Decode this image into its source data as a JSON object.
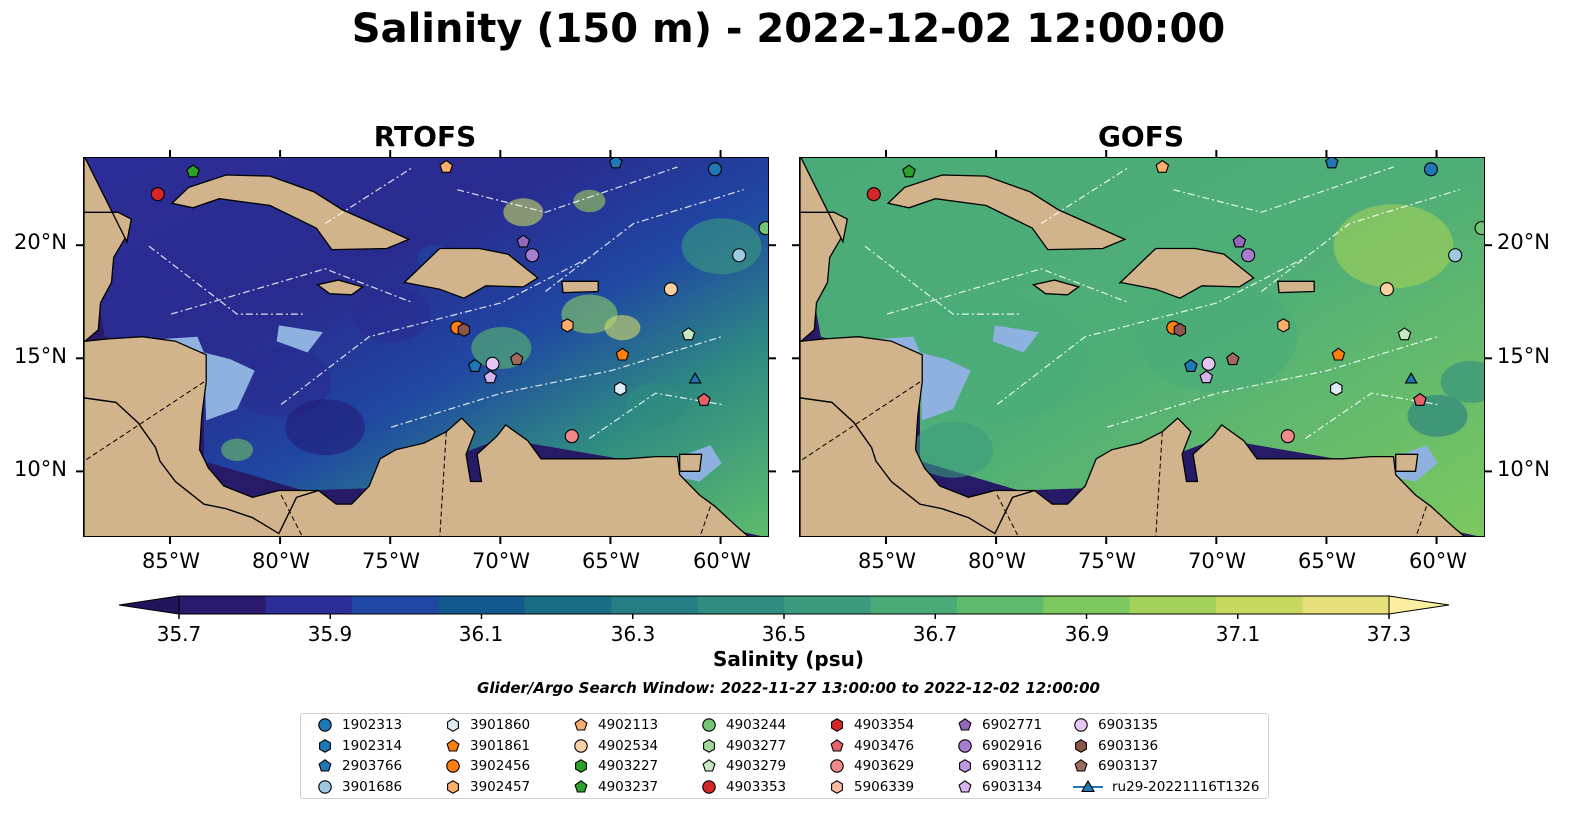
{
  "title": "Salinity (150 m) - 2022-12-02 12:00:00",
  "panels": [
    {
      "title": "RTOFS",
      "style": "rtofs"
    },
    {
      "title": "GOFS",
      "style": "gofs"
    }
  ],
  "axes": {
    "lon_ticks": [
      "85°W",
      "80°W",
      "75°W",
      "70°W",
      "65°W",
      "60°W"
    ],
    "lat_ticks": [
      "20°N",
      "15°N",
      "10°N"
    ]
  },
  "colorbar": {
    "ticks": [
      "35.7",
      "35.9",
      "36.1",
      "36.3",
      "36.5",
      "36.7",
      "36.9",
      "37.1",
      "37.3"
    ],
    "label": "Salinity (psu)",
    "colors": [
      "#2a186c",
      "#2c2d97",
      "#1f47a3",
      "#125a8e",
      "#186d84",
      "#237d82",
      "#2f8c81",
      "#3a9b7f",
      "#4aab79",
      "#5ebb6d",
      "#7cc85f",
      "#a3d159",
      "#c8d861",
      "#e6e07a"
    ],
    "extend_low": "#23135a",
    "extend_high": "#fbee9f"
  },
  "search_window": "Glider/Argo Search Window: 2022-11-27 13:00:00 to 2022-12-02 12:00:00",
  "map_colors": {
    "land": "#d2b48c",
    "shelf": "#8fb1e0",
    "pacific": "#271a66"
  },
  "legend": [
    {
      "label": "1902313",
      "shape": "circle",
      "color": "#1f77b4"
    },
    {
      "label": "1902314",
      "shape": "hexagon",
      "color": "#1f77b4"
    },
    {
      "label": "2903766",
      "shape": "pentagon",
      "color": "#1f77b4"
    },
    {
      "label": "3901686",
      "shape": "circle",
      "color": "#9ecae1"
    },
    {
      "label": "3901860",
      "shape": "hexagon",
      "color": "#deebf7"
    },
    {
      "label": "3901861",
      "shape": "pentagon",
      "color": "#ff7f0e"
    },
    {
      "label": "3902456",
      "shape": "circle",
      "color": "#ff7f0e"
    },
    {
      "label": "3902457",
      "shape": "hexagon",
      "color": "#fdae6b"
    },
    {
      "label": "4902113",
      "shape": "pentagon",
      "color": "#fdae6b"
    },
    {
      "label": "4902534",
      "shape": "circle",
      "color": "#fdd0a2"
    },
    {
      "label": "4903227",
      "shape": "hexagon",
      "color": "#2ca02c"
    },
    {
      "label": "4903237",
      "shape": "pentagon",
      "color": "#2ca02c"
    },
    {
      "label": "4903244",
      "shape": "circle",
      "color": "#74c476"
    },
    {
      "label": "4903277",
      "shape": "hexagon",
      "color": "#a1d99b"
    },
    {
      "label": "4903279",
      "shape": "pentagon",
      "color": "#c7e9c0"
    },
    {
      "label": "4903353",
      "shape": "circle",
      "color": "#d62728"
    },
    {
      "label": "4903354",
      "shape": "hexagon",
      "color": "#d62728"
    },
    {
      "label": "4903476",
      "shape": "pentagon",
      "color": "#e7616a"
    },
    {
      "label": "4903629",
      "shape": "circle",
      "color": "#f08a8a"
    },
    {
      "label": "5906339",
      "shape": "hexagon",
      "color": "#fcbba1"
    },
    {
      "label": "6902771",
      "shape": "pentagon",
      "color": "#9467bd"
    },
    {
      "label": "6902916",
      "shape": "circle",
      "color": "#a77dd0"
    },
    {
      "label": "6903112",
      "shape": "hexagon",
      "color": "#bc9ae0"
    },
    {
      "label": "6903134",
      "shape": "pentagon",
      "color": "#d4b3f0"
    },
    {
      "label": "6903135",
      "shape": "circle",
      "color": "#e5c6f5"
    },
    {
      "label": "6903136",
      "shape": "hexagon",
      "color": "#8c564b"
    },
    {
      "label": "6903137",
      "shape": "pentagon",
      "color": "#a0695e"
    },
    {
      "label": "ru29-20221116T1326",
      "shape": "triangle-line",
      "color": "#1f77b4"
    }
  ],
  "markers": [
    {
      "id": "1902313",
      "lon": -60.3,
      "lat": 23.4
    },
    {
      "id": "2903766",
      "lon": -64.8,
      "lat": 23.7
    },
    {
      "id": "3901686",
      "lon": -59.2,
      "lat": 19.6
    },
    {
      "id": "4903237",
      "lon": -84.0,
      "lat": 23.3
    },
    {
      "id": "4902113",
      "lon": -72.5,
      "lat": 23.5
    },
    {
      "id": "4903353",
      "lon": -85.6,
      "lat": 22.3
    },
    {
      "id": "4903244",
      "lon": -58.0,
      "lat": 20.8
    },
    {
      "id": "6902771",
      "lon": -69.0,
      "lat": 20.2
    },
    {
      "id": "6902916",
      "lon": -68.6,
      "lat": 19.6
    },
    {
      "id": "4902534",
      "lon": -62.3,
      "lat": 18.1
    },
    {
      "id": "3902456",
      "lon": -72.0,
      "lat": 16.4
    },
    {
      "id": "6903136",
      "lon": -71.7,
      "lat": 16.3
    },
    {
      "id": "3902457",
      "lon": -67.0,
      "lat": 16.5
    },
    {
      "id": "3901861",
      "lon": -64.5,
      "lat": 15.2
    },
    {
      "id": "4903279",
      "lon": -61.5,
      "lat": 16.1
    },
    {
      "id": "2903766",
      "lon": -71.2,
      "lat": 14.7
    },
    {
      "id": "6903135",
      "lon": -70.4,
      "lat": 14.8
    },
    {
      "id": "6903134",
      "lon": -70.5,
      "lat": 14.2
    },
    {
      "id": "6903137",
      "lon": -69.3,
      "lat": 15.0
    },
    {
      "id": "3901860",
      "lon": -64.6,
      "lat": 13.7
    },
    {
      "id": "ru29-20221116T1326",
      "lon": -61.2,
      "lat": 14.1
    },
    {
      "id": "4903476",
      "lon": -60.8,
      "lat": 13.2
    },
    {
      "id": "4903629",
      "lon": -66.8,
      "lat": 11.6
    }
  ]
}
